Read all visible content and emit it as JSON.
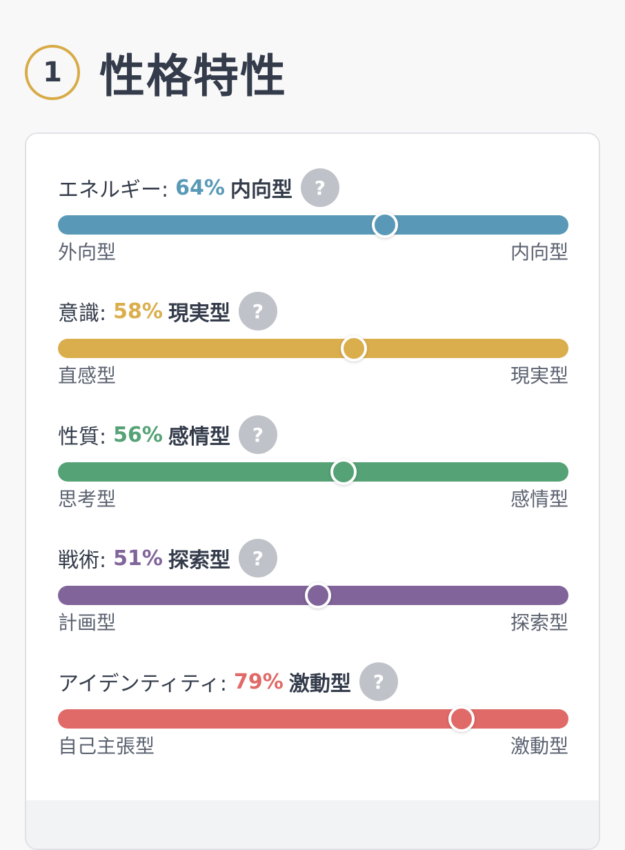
{
  "header": {
    "step_number": "1",
    "title": "性格特性"
  },
  "help_symbol": "?",
  "traits": [
    {
      "name": "エネルギー:",
      "percent_text": "64%",
      "type": "内向型",
      "left_pole": "外向型",
      "right_pole": "内向型",
      "color": "#5999b7",
      "value": 0.64
    },
    {
      "name": "意識:",
      "percent_text": "58%",
      "type": "現実型",
      "left_pole": "直感型",
      "right_pole": "現実型",
      "color": "#dbae4d",
      "value": 0.58
    },
    {
      "name": "性質:",
      "percent_text": "56%",
      "type": "感情型",
      "left_pole": "思考型",
      "right_pole": "感情型",
      "color": "#54a275",
      "value": 0.56
    },
    {
      "name": "戦術:",
      "percent_text": "51%",
      "type": "探索型",
      "left_pole": "計画型",
      "right_pole": "探索型",
      "color": "#80649a",
      "value": 0.51
    },
    {
      "name": "アイデンティティ:",
      "percent_text": "79%",
      "type": "激動型",
      "left_pole": "自己主張型",
      "right_pole": "激動型",
      "color": "#e06a67",
      "value": 0.79
    }
  ]
}
